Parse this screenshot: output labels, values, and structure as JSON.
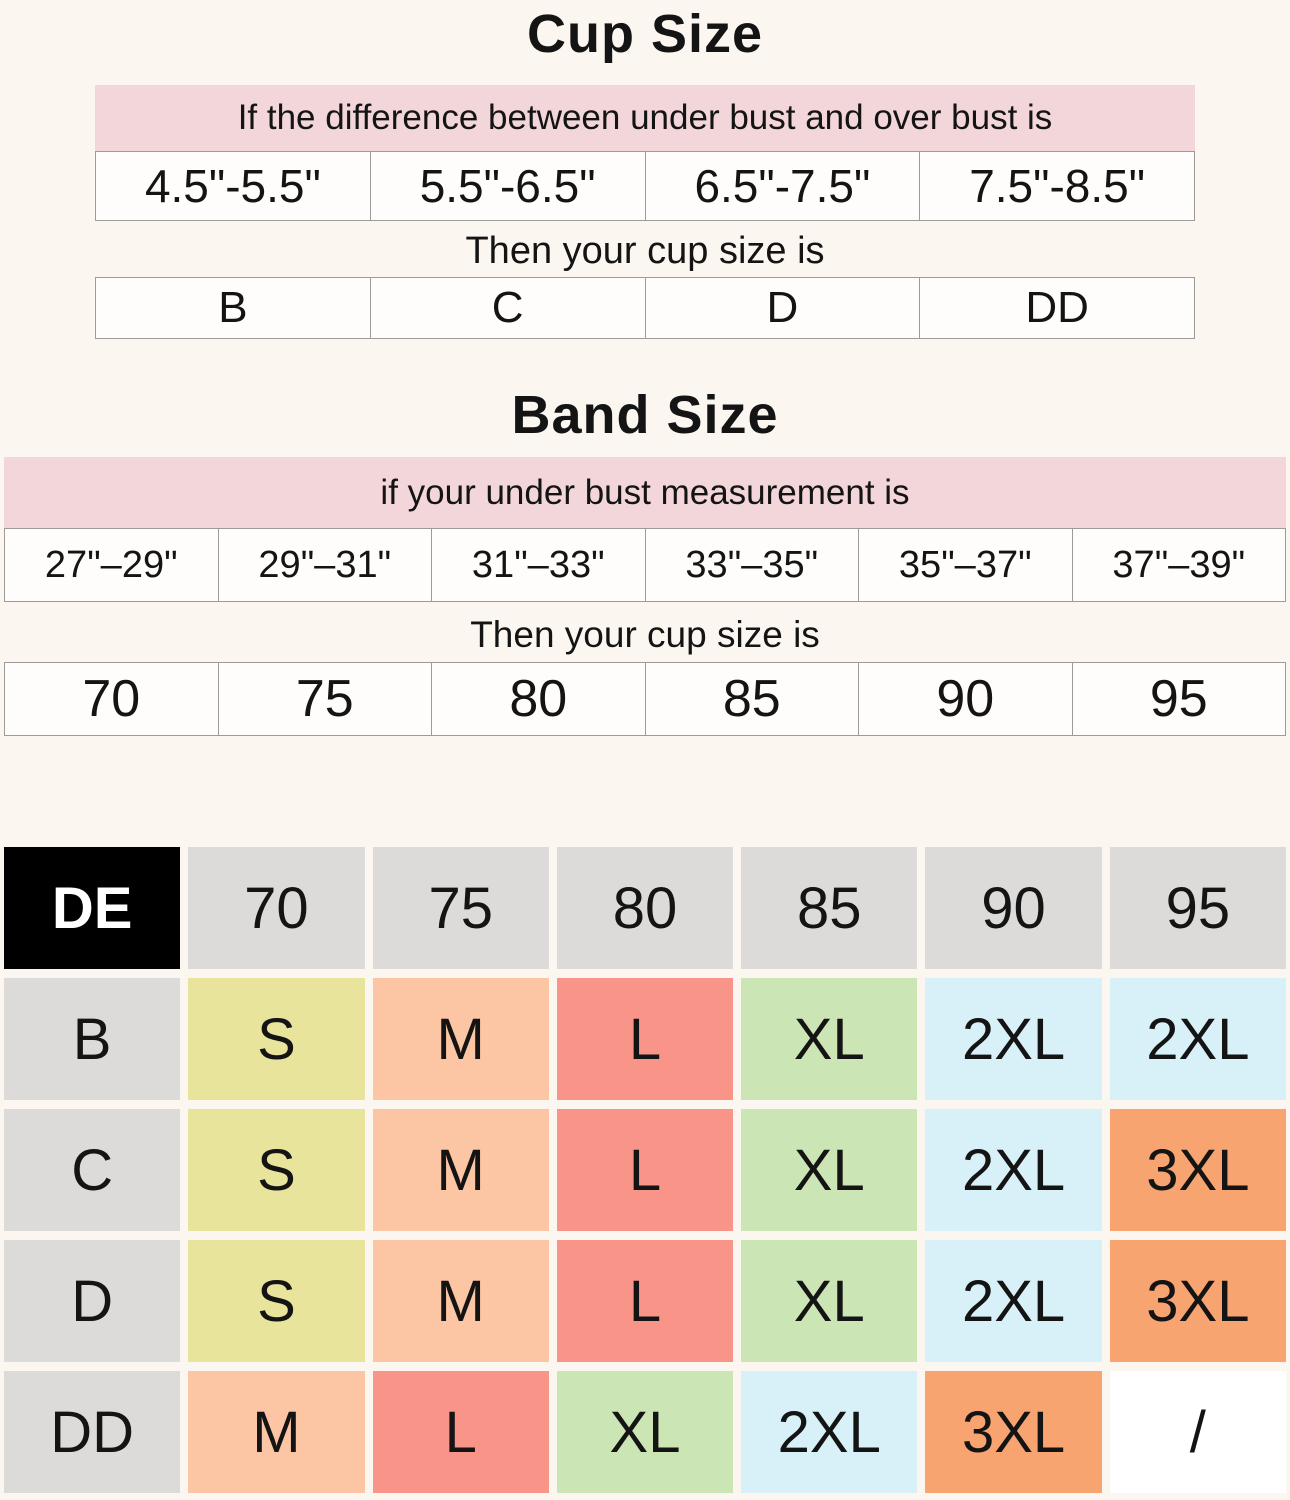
{
  "cup": {
    "title": "Cup Size",
    "banner": "If the difference between under bust and over bust is",
    "then_label": "Then your cup size is",
    "ranges": [
      "4.5\"-5.5\"",
      "5.5\"-6.5\"",
      "6.5\"-7.5\"",
      "7.5\"-8.5\""
    ],
    "sizes": [
      "B",
      "C",
      "D",
      "DD"
    ]
  },
  "band": {
    "title": "Band Size",
    "banner": "if your under bust measurement is",
    "then_label": "Then your cup size is",
    "ranges": [
      "27\"–29\"",
      "29\"–31\"",
      "31\"–33\"",
      "33\"–35\"",
      "35\"–37\"",
      "37\"–39\""
    ],
    "sizes": [
      "70",
      "75",
      "80",
      "85",
      "90",
      "95"
    ]
  },
  "matrix": {
    "corner": "DE",
    "columns": [
      "70",
      "75",
      "80",
      "85",
      "90",
      "95"
    ],
    "rows": [
      {
        "label": "B",
        "cells": [
          {
            "text": "S",
            "color": "yellow"
          },
          {
            "text": "M",
            "color": "peach"
          },
          {
            "text": "L",
            "color": "salmon"
          },
          {
            "text": "XL",
            "color": "green"
          },
          {
            "text": "2XL",
            "color": "cyan"
          },
          {
            "text": "2XL",
            "color": "cyan"
          }
        ]
      },
      {
        "label": "C",
        "cells": [
          {
            "text": "S",
            "color": "yellow"
          },
          {
            "text": "M",
            "color": "peach"
          },
          {
            "text": "L",
            "color": "salmon"
          },
          {
            "text": "XL",
            "color": "green"
          },
          {
            "text": "2XL",
            "color": "cyan"
          },
          {
            "text": "3XL",
            "color": "orange"
          }
        ]
      },
      {
        "label": "D",
        "cells": [
          {
            "text": "S",
            "color": "yellow"
          },
          {
            "text": "M",
            "color": "peach"
          },
          {
            "text": "L",
            "color": "salmon"
          },
          {
            "text": "XL",
            "color": "green"
          },
          {
            "text": "2XL",
            "color": "cyan"
          },
          {
            "text": "3XL",
            "color": "orange"
          }
        ]
      },
      {
        "label": "DD",
        "cells": [
          {
            "text": "M",
            "color": "peach"
          },
          {
            "text": "L",
            "color": "salmon"
          },
          {
            "text": "XL",
            "color": "green"
          },
          {
            "text": "2XL",
            "color": "cyan"
          },
          {
            "text": "3XL",
            "color": "orange"
          },
          {
            "text": "/",
            "color": "white"
          }
        ]
      }
    ]
  },
  "colors": {
    "background": "#fcf6f1",
    "banner_pink": "#f3d6da",
    "cell_white": "#fffdfb",
    "cell_border": "#9e9a98",
    "header_gray": "#dcdbd9",
    "corner_black": "#000000",
    "yellow": "#e9e49c",
    "peach": "#fcc5a3",
    "salmon": "#f99489",
    "green": "#cce5b4",
    "cyan": "#d8f0f8",
    "orange": "#f8a470",
    "white": "#ffffff",
    "text": "#141414"
  }
}
